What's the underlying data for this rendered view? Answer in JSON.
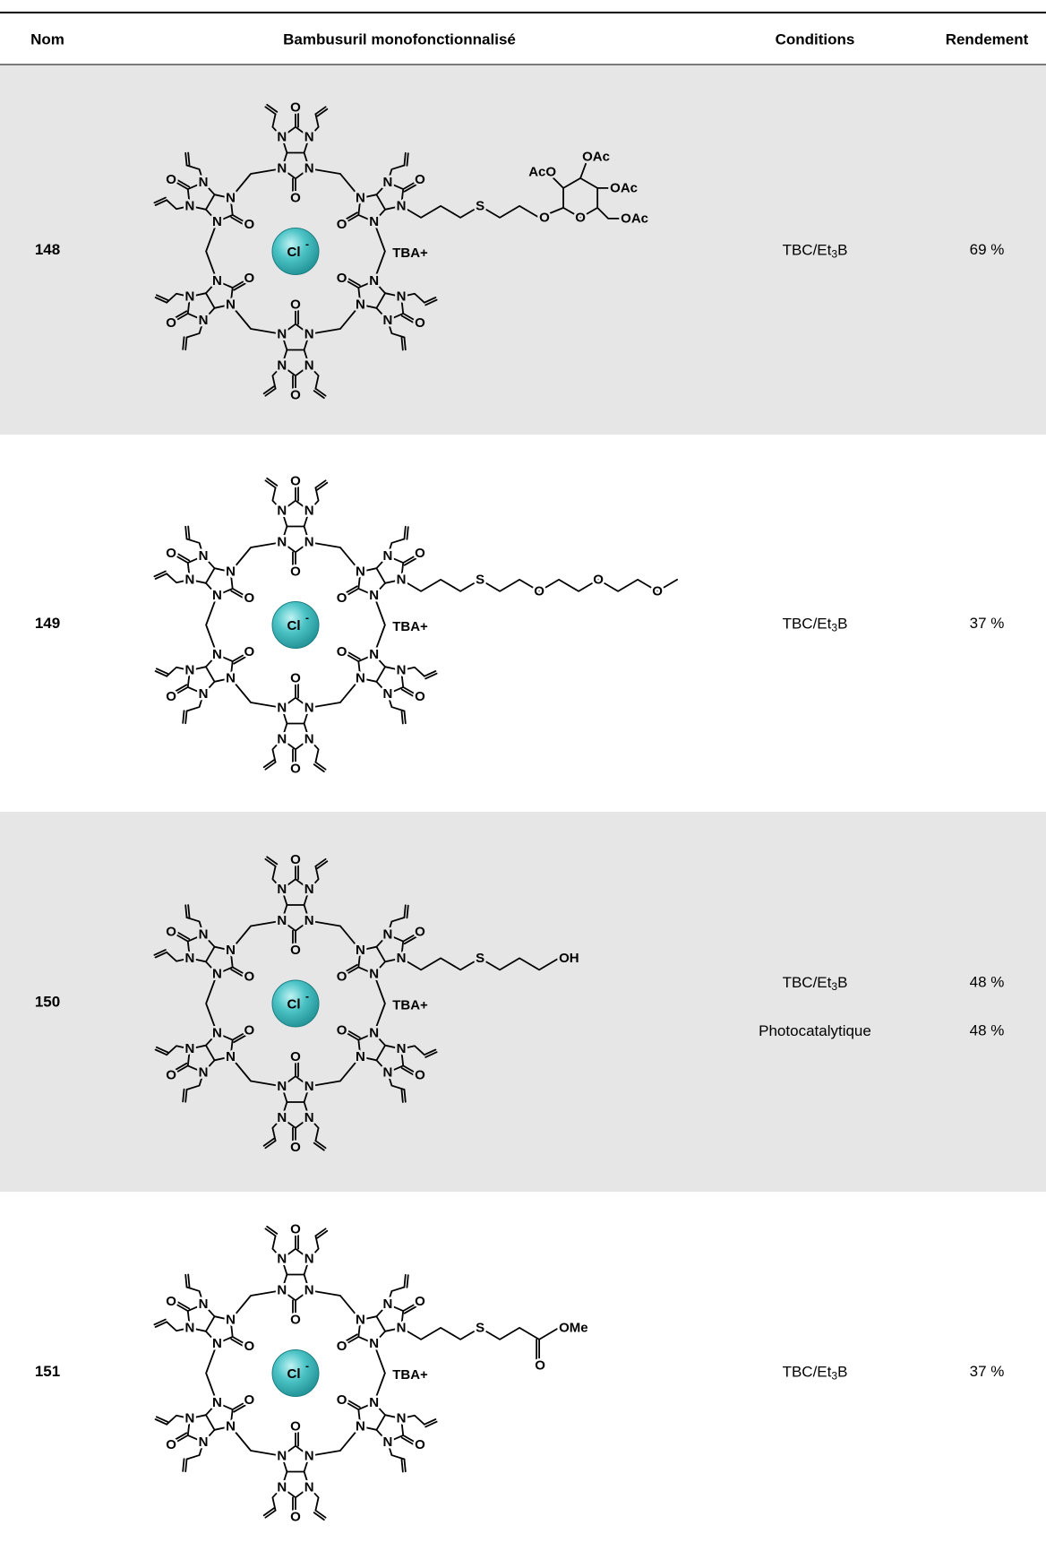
{
  "header": {
    "columns": [
      "Nom",
      "Bambusuril monofonctionnalisé",
      "Conditions",
      "Rendement"
    ]
  },
  "atoms": {
    "nitrogen": "N",
    "oxygen": "O"
  },
  "rows": [
    {
      "name": "148",
      "structure": {
        "anion": "Cl",
        "charge": "-",
        "cation": "TBA+",
        "substituent": [
          "S",
          "O",
          "O",
          "AcO",
          "OAc",
          "OAc",
          "OAc"
        ]
      },
      "conditions": [
        [
          "TBC/Et",
          "3",
          "B"
        ]
      ],
      "yields": [
        "69 %"
      ]
    },
    {
      "name": "149",
      "structure": {
        "anion": "Cl",
        "charge": "-",
        "cation": "TBA+",
        "substituent": [
          "S",
          "O",
          "O",
          "O"
        ]
      },
      "conditions": [
        [
          "TBC/Et",
          "3",
          "B"
        ]
      ],
      "yields": [
        "37 %"
      ]
    },
    {
      "name": "150",
      "structure": {
        "anion": "Cl",
        "charge": "-",
        "cation": "TBA+",
        "substituent": [
          "S",
          "OH"
        ]
      },
      "conditions": [
        [
          "TBC/Et",
          "3",
          "B"
        ],
        [
          "Photocatalytique"
        ]
      ],
      "yields": [
        "48 %",
        "48 %"
      ]
    },
    {
      "name": "151",
      "structure": {
        "anion": "Cl",
        "charge": "-",
        "cation": "TBA+",
        "substituent": [
          "S",
          "OMe",
          "O"
        ]
      },
      "conditions": [
        [
          "TBC/Et",
          "3",
          "B"
        ]
      ],
      "yields": [
        "37 %"
      ]
    }
  ]
}
